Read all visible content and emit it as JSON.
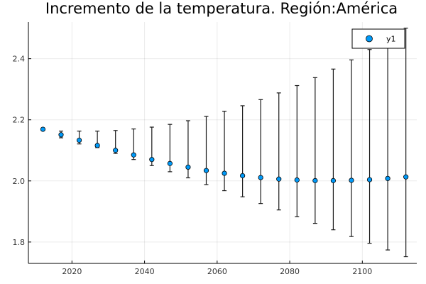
{
  "chart_data": {
    "type": "scatter",
    "title": "Incremento de la temperatura. Región:América",
    "xlabel": "",
    "ylabel": "",
    "xlim": [
      2008,
      2115
    ],
    "ylim": [
      1.73,
      2.52
    ],
    "xticks": [
      2020,
      2040,
      2060,
      2080,
      2100
    ],
    "yticks": [
      1.8,
      2.0,
      2.2,
      2.4
    ],
    "grid": true,
    "legend": "top-right",
    "marker_color": "#009af9",
    "series": [
      {
        "name": "y1",
        "points": [
          {
            "x": 2012,
            "y": 2.169,
            "lo": 2.166,
            "hi": 2.172
          },
          {
            "x": 2017,
            "y": 2.151,
            "lo": 2.141,
            "hi": 2.163
          },
          {
            "x": 2022,
            "y": 2.133,
            "lo": 2.121,
            "hi": 2.163
          },
          {
            "x": 2027,
            "y": 2.116,
            "lo": 2.109,
            "hi": 2.163
          },
          {
            "x": 2032,
            "y": 2.1,
            "lo": 2.09,
            "hi": 2.165
          },
          {
            "x": 2037,
            "y": 2.085,
            "lo": 2.07,
            "hi": 2.17
          },
          {
            "x": 2042,
            "y": 2.07,
            "lo": 2.05,
            "hi": 2.176
          },
          {
            "x": 2047,
            "y": 2.057,
            "lo": 2.03,
            "hi": 2.185
          },
          {
            "x": 2052,
            "y": 2.045,
            "lo": 2.01,
            "hi": 2.197
          },
          {
            "x": 2057,
            "y": 2.034,
            "lo": 1.988,
            "hi": 2.211
          },
          {
            "x": 2062,
            "y": 2.025,
            "lo": 1.968,
            "hi": 2.228
          },
          {
            "x": 2067,
            "y": 2.017,
            "lo": 1.948,
            "hi": 2.246
          },
          {
            "x": 2072,
            "y": 2.011,
            "lo": 1.926,
            "hi": 2.266
          },
          {
            "x": 2077,
            "y": 2.006,
            "lo": 1.905,
            "hi": 2.288
          },
          {
            "x": 2082,
            "y": 2.003,
            "lo": 1.883,
            "hi": 2.312
          },
          {
            "x": 2087,
            "y": 2.001,
            "lo": 1.861,
            "hi": 2.338
          },
          {
            "x": 2092,
            "y": 2.001,
            "lo": 1.84,
            "hi": 2.366
          },
          {
            "x": 2097,
            "y": 2.002,
            "lo": 1.818,
            "hi": 2.396
          },
          {
            "x": 2102,
            "y": 2.004,
            "lo": 1.796,
            "hi": 2.43
          },
          {
            "x": 2107,
            "y": 2.008,
            "lo": 1.774,
            "hi": 2.465
          },
          {
            "x": 2112,
            "y": 2.013,
            "lo": 1.752,
            "hi": 2.5
          }
        ]
      }
    ]
  }
}
